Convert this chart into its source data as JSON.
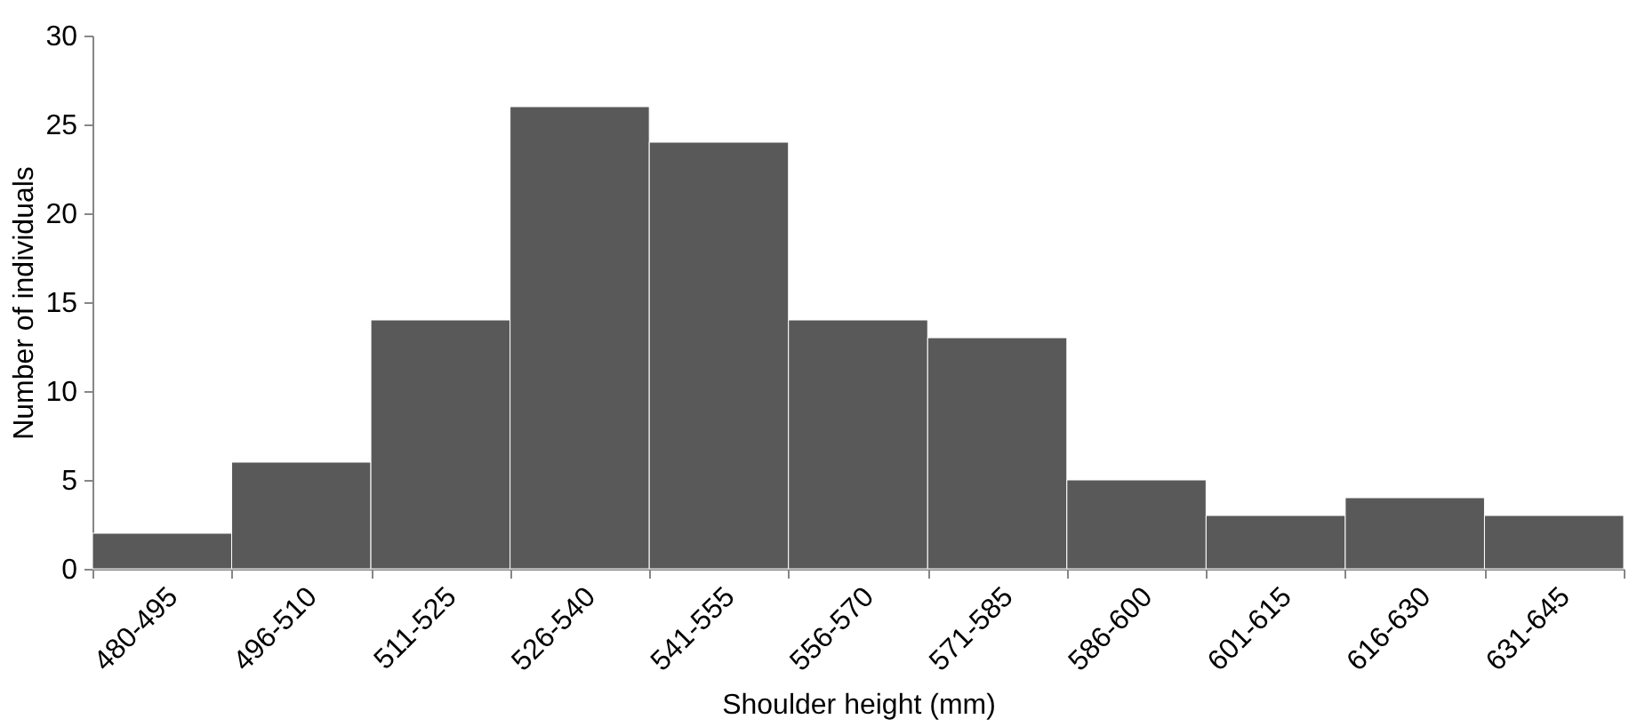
{
  "chart_data": {
    "type": "bar",
    "xlabel": "Shoulder height (mm)",
    "ylabel": "Number of individuals",
    "categories": [
      "480-495",
      "496-510",
      "511-525",
      "526-540",
      "541-555",
      "556-570",
      "571-585",
      "586-600",
      "601-615",
      "616-630",
      "631-645"
    ],
    "values": [
      2,
      6,
      14,
      26,
      24,
      14,
      13,
      5,
      3,
      4,
      3
    ],
    "color": "#595959",
    "ylim": [
      0,
      30
    ],
    "yticks": [
      0,
      5,
      10,
      15,
      20,
      25,
      30
    ],
    "grid": false
  }
}
